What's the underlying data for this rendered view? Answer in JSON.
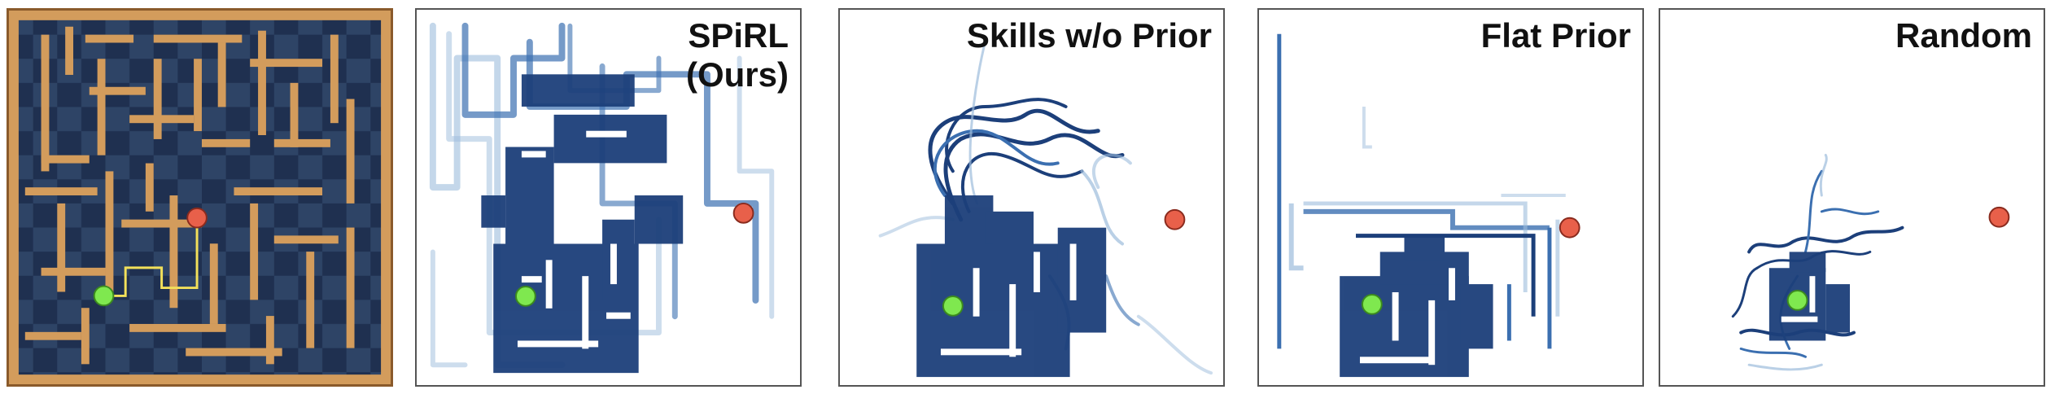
{
  "panels": [
    {
      "id": "maze",
      "title": ""
    },
    {
      "id": "spirl",
      "title_line1": "SPiRL",
      "title_line2": "(Ours)"
    },
    {
      "id": "skills",
      "title": "Skills w/o Prior"
    },
    {
      "id": "flat",
      "title": "Flat Prior"
    },
    {
      "id": "random",
      "title": "Random"
    }
  ],
  "colors": {
    "maze_floor": "#1f3050",
    "maze_floor_alt": "#2e4466",
    "maze_wall": "#d39c5c",
    "maze_border": "#8a5a2b",
    "trajectory_dark": "#1c3f7a",
    "trajectory_mid": "#3b6fb0",
    "trajectory_light": "#9cbcdc",
    "start": "#7fe84f",
    "goal": "#e8604a",
    "path": "#f2e05a"
  },
  "icons": {
    "start_marker": "green-circle",
    "goal_marker": "red-circle"
  }
}
